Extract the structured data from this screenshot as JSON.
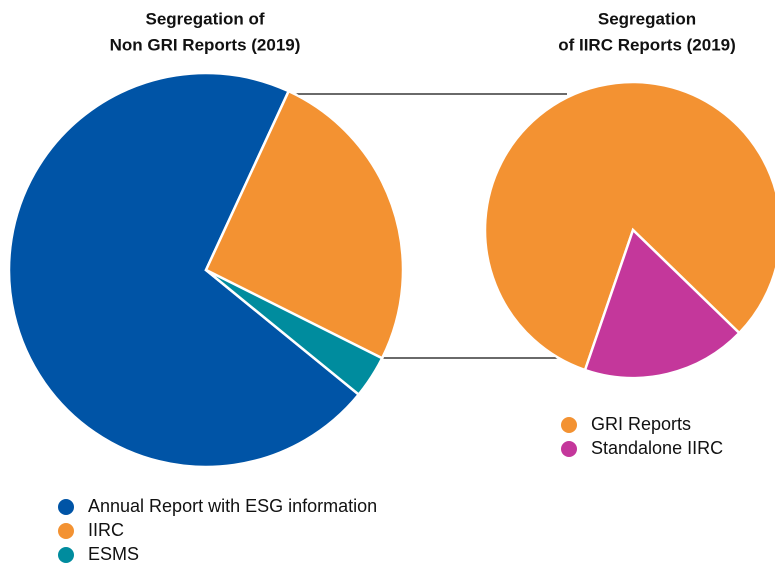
{
  "chart_data": [
    {
      "type": "pie",
      "title": [
        "Segregation of",
        "Non GRI Reports (2019)"
      ],
      "categories": [
        "Annual Report with ESG information",
        "IIRC",
        "ESMS"
      ],
      "values": [
        71,
        25.5,
        3.5
      ],
      "colors": [
        "#0054a6",
        "#f39232",
        "#008c9e"
      ]
    },
    {
      "type": "pie",
      "title": [
        "Segregation",
        "of IIRC Reports (2019)"
      ],
      "categories": [
        "GRI Reports",
        "Standalone IIRC"
      ],
      "values": [
        82,
        18
      ],
      "colors": [
        "#f39232",
        "#c4379b"
      ]
    }
  ]
}
